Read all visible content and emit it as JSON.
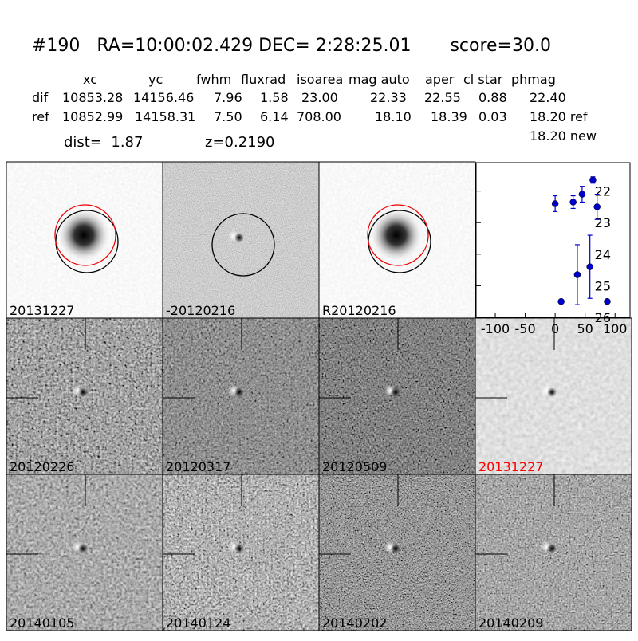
{
  "header": {
    "title": "#190   RA=10:00:02.429 DEC= 2:28:25.01       score=30.0"
  },
  "table": {
    "columns": [
      "xc",
      "yc",
      "fwhm",
      "fluxrad",
      "isoarea",
      "mag auto",
      "aper",
      "cl star",
      "phmag"
    ],
    "rows": [
      [
        "dif",
        "10853.28",
        "14156.46",
        "7.96",
        "1.58",
        "23.00",
        "22.33",
        "22.55",
        "0.88",
        "22.40"
      ],
      [
        "ref",
        "10852.99",
        "14158.31",
        "7.50",
        "6.14",
        "708.00",
        "18.10",
        "18.39",
        "0.03",
        "18.20 ref"
      ]
    ],
    "extra": "18.20 new"
  },
  "dist": "dist=  1.87",
  "redshift": "z=0.2190",
  "panels": [
    {
      "label": "20131227"
    },
    {
      "label": "-20120216"
    },
    {
      "label": "R20120216"
    },
    {
      "label": "20120226"
    },
    {
      "label": "20120317"
    },
    {
      "label": "20120509"
    },
    {
      "label": "20131227",
      "label_color": "#ff0000"
    },
    {
      "label": "20140105"
    },
    {
      "label": "20140124"
    },
    {
      "label": "20140202"
    },
    {
      "label": "20140209"
    }
  ],
  "chart_data": {
    "type": "scatter",
    "x": [
      0,
      10,
      30,
      45,
      37,
      58,
      63,
      70,
      87
    ],
    "series": [
      {
        "color": "#0000cc",
        "values": [
          22.4,
          25.5,
          22.35,
          22.1,
          24.65,
          24.4,
          21.65,
          22.5,
          25.5
        ],
        "errors": [
          0.25,
          0.05,
          0.2,
          0.25,
          0.95,
          1.0,
          0.1,
          0.4,
          0.05
        ]
      }
    ],
    "xlim": [
      -132,
      125
    ],
    "ylim": [
      26,
      21.1
    ],
    "xticks": [
      -100,
      -50,
      0,
      50,
      100
    ],
    "yticks": [
      22,
      23,
      24,
      25,
      26
    ]
  }
}
